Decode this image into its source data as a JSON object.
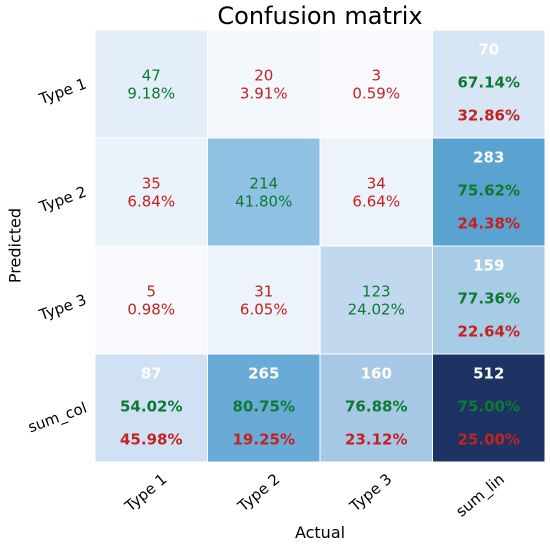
{
  "chart_data": {
    "type": "heatmap",
    "title": "Confusion matrix",
    "xlabel": "Actual",
    "ylabel": "Predicted",
    "x_categories": [
      "Type 1",
      "Type 2",
      "Type 3",
      "sum_lin"
    ],
    "y_categories": [
      "Type 1",
      "Type 2",
      "Type 3",
      "sum_col"
    ],
    "counts": [
      [
        47,
        20,
        3,
        70
      ],
      [
        35,
        214,
        34,
        283
      ],
      [
        5,
        31,
        123,
        159
      ],
      [
        87,
        265,
        160,
        512
      ]
    ],
    "percent_of_total": [
      [
        "9.18%",
        "3.91%",
        "0.59%",
        null
      ],
      [
        "6.84%",
        "41.80%",
        "6.64%",
        null
      ],
      [
        "0.98%",
        "6.05%",
        "24.02%",
        null
      ],
      [
        null,
        null,
        null,
        null
      ]
    ],
    "row_summary": [
      {
        "correct": "67.14%",
        "error": "32.86%"
      },
      {
        "correct": "75.62%",
        "error": "24.38%"
      },
      {
        "correct": "77.36%",
        "error": "22.64%"
      }
    ],
    "col_summary": [
      {
        "correct": "54.02%",
        "error": "45.98%"
      },
      {
        "correct": "80.75%",
        "error": "19.25%"
      },
      {
        "correct": "76.88%",
        "error": "23.12%"
      }
    ],
    "total_summary": {
      "correct": "75.00%",
      "error": "25.00%"
    },
    "colors": {
      "correct_text": "#0d7a32",
      "error_text": "#c42222",
      "total_text": "#ffffff",
      "cell_colors": [
        [
          "#e4eef8",
          "#f4f7fc",
          "#f7f9fd",
          "#d6e6f4"
        ],
        [
          "#eaf2fa",
          "#8fc1e2",
          "#ecf3fa",
          "#5aa2d0"
        ],
        [
          "#f8fafd",
          "#edf3fa",
          "#c2d8ee",
          "#a9cce6"
        ],
        [
          "#cfe1f2",
          "#6aaad6",
          "#a6c8e5",
          "#1c3364"
        ]
      ]
    },
    "grid": false
  }
}
